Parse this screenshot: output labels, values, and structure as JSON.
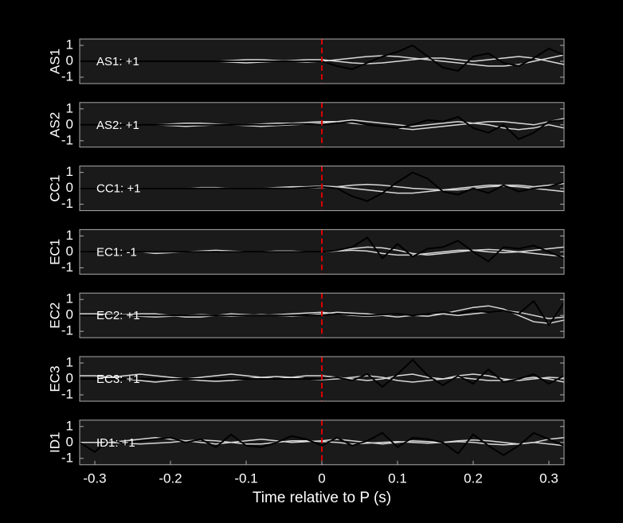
{
  "chart_data": [
    {
      "type": "line",
      "ylabel": "AS1",
      "annotation": "AS1: +1",
      "annotation_color": "#cc0000",
      "vline": 0,
      "vline_color": "#dd0000",
      "x": [
        -0.32,
        -0.3,
        -0.28,
        -0.26,
        -0.24,
        -0.22,
        -0.2,
        -0.18,
        -0.16,
        -0.14,
        -0.12,
        -0.1,
        -0.08,
        -0.06,
        -0.04,
        -0.02,
        0,
        0.02,
        0.04,
        0.06,
        0.08,
        0.1,
        0.12,
        0.14,
        0.16,
        0.18,
        0.2,
        0.22,
        0.24,
        0.26,
        0.28,
        0.3,
        0.32
      ],
      "xlim": [
        -0.32,
        0.32
      ],
      "ylim": [
        -1.4,
        1.4
      ],
      "yticks": [
        -1,
        0,
        1
      ],
      "series": [
        {
          "color": "#d9d9d9",
          "values": [
            0,
            0,
            0,
            0,
            0,
            0,
            0,
            0,
            0,
            0,
            0.05,
            0.1,
            0.1,
            0.05,
            0,
            -0.05,
            0,
            0.1,
            0.2,
            0.3,
            0.35,
            0.3,
            0.2,
            0.1,
            0,
            -0.1,
            -0.2,
            -0.3,
            -0.3,
            -0.2,
            0,
            0.2,
            0.4
          ]
        },
        {
          "color": "#d9d9d9",
          "values": [
            0,
            0,
            0,
            0,
            0,
            0,
            0,
            0,
            0,
            0,
            -0.05,
            -0.1,
            -0.05,
            0,
            0.05,
            0.1,
            0.1,
            0,
            -0.1,
            -0.15,
            -0.1,
            0,
            0.1,
            0.2,
            0.2,
            0.1,
            0,
            0.1,
            0.2,
            0.3,
            0.2,
            0,
            -0.2
          ]
        },
        {
          "color": "#000000",
          "values": [
            0,
            0,
            0,
            0,
            0,
            0,
            0,
            0,
            0,
            0,
            0,
            0,
            0,
            0,
            0,
            0,
            0,
            -0.3,
            -0.5,
            -0.1,
            0.3,
            0.6,
            1.0,
            0.3,
            -0.4,
            -0.6,
            0.3,
            0.5,
            -0.1,
            -0.3,
            0.2,
            0.8,
            0.4
          ]
        }
      ]
    },
    {
      "type": "line",
      "ylabel": "AS2",
      "annotation": "AS2: +1",
      "annotation_color": "#cc0000",
      "vline": 0,
      "vline_color": "#dd0000",
      "x": [
        -0.32,
        -0.3,
        -0.28,
        -0.26,
        -0.24,
        -0.22,
        -0.2,
        -0.18,
        -0.16,
        -0.14,
        -0.12,
        -0.1,
        -0.08,
        -0.06,
        -0.04,
        -0.02,
        0,
        0.02,
        0.04,
        0.06,
        0.08,
        0.1,
        0.12,
        0.14,
        0.16,
        0.18,
        0.2,
        0.22,
        0.24,
        0.26,
        0.28,
        0.3,
        0.32
      ],
      "xlim": [
        -0.32,
        0.32
      ],
      "ylim": [
        -1.4,
        1.4
      ],
      "yticks": [
        -1,
        0,
        1
      ],
      "series": [
        {
          "color": "#d9d9d9",
          "values": [
            0,
            0,
            0,
            0,
            0,
            0,
            0.05,
            0.1,
            0.1,
            0.05,
            0,
            0,
            0.05,
            0.1,
            0.1,
            0.15,
            0.2,
            0.2,
            0.1,
            0,
            -0.1,
            -0.2,
            -0.3,
            -0.2,
            -0.1,
            0,
            0.1,
            0.2,
            0.2,
            0.1,
            0,
            0.2,
            0.4
          ]
        },
        {
          "color": "#d9d9d9",
          "values": [
            0,
            0,
            0,
            0,
            0,
            0,
            -0.05,
            -0.1,
            -0.05,
            0,
            0,
            -0.05,
            -0.1,
            -0.05,
            0,
            0.05,
            0.1,
            0.2,
            0.3,
            0.2,
            0.1,
            0,
            -0.1,
            0,
            0.1,
            0.2,
            0.1,
            0,
            -0.2,
            -0.3,
            -0.2,
            0,
            -0.2
          ]
        },
        {
          "color": "#000000",
          "values": [
            0,
            0,
            0,
            0,
            0,
            0,
            0,
            0,
            0,
            0,
            0,
            0,
            0,
            0,
            0.05,
            0.05,
            0,
            0.1,
            0.2,
            0,
            -0.1,
            -0.2,
            0,
            0.3,
            0.2,
            0.5,
            -0.2,
            -0.5,
            0,
            -0.9,
            -0.5,
            0.2,
            0.3
          ]
        }
      ]
    },
    {
      "type": "line",
      "ylabel": "CC1",
      "annotation": "CC1: +1",
      "annotation_color": "#cc0000",
      "vline": 0,
      "vline_color": "#dd0000",
      "x": [
        -0.32,
        -0.3,
        -0.28,
        -0.26,
        -0.24,
        -0.22,
        -0.2,
        -0.18,
        -0.16,
        -0.14,
        -0.12,
        -0.1,
        -0.08,
        -0.06,
        -0.04,
        -0.02,
        0,
        0.02,
        0.04,
        0.06,
        0.08,
        0.1,
        0.12,
        0.14,
        0.16,
        0.18,
        0.2,
        0.22,
        0.24,
        0.26,
        0.28,
        0.3,
        0.32
      ],
      "xlim": [
        -0.32,
        0.32
      ],
      "ylim": [
        -1.4,
        1.4
      ],
      "yticks": [
        -1,
        0,
        1
      ],
      "series": [
        {
          "color": "#d9d9d9",
          "values": [
            0,
            0,
            0,
            0,
            0,
            0,
            0,
            0,
            0.05,
            0.05,
            0,
            0,
            0,
            0.05,
            0.1,
            0.1,
            0.15,
            0.1,
            0,
            -0.1,
            -0.2,
            -0.3,
            -0.3,
            -0.2,
            -0.1,
            0,
            0.1,
            0.2,
            0.2,
            0.2,
            0.1,
            0.2,
            0.3
          ]
        },
        {
          "color": "#d9d9d9",
          "values": [
            0,
            0,
            0,
            0,
            0,
            0,
            0,
            0,
            0,
            0,
            0,
            0,
            0,
            0,
            0.05,
            0.05,
            0.05,
            0.1,
            0.2,
            0.25,
            0.2,
            0.1,
            0,
            -0.05,
            -0.1,
            -0.1,
            0,
            0.1,
            0.15,
            0.1,
            0,
            -0.1,
            -0.2
          ]
        },
        {
          "color": "#000000",
          "values": [
            0,
            0,
            0,
            0,
            0,
            0,
            0,
            0,
            0,
            0,
            0,
            0,
            0,
            0,
            0,
            0.05,
            0.1,
            0,
            -0.5,
            -0.8,
            -0.3,
            0.4,
            1.0,
            0.6,
            -0.2,
            -0.4,
            0,
            -0.3,
            0.2,
            -0.2,
            0,
            0.1,
            0.4
          ]
        }
      ]
    },
    {
      "type": "line",
      "ylabel": "EC1",
      "annotation": "EC1: -1",
      "annotation_color": "#0000aa",
      "vline": 0,
      "vline_color": "#dd0000",
      "x": [
        -0.32,
        -0.3,
        -0.28,
        -0.26,
        -0.24,
        -0.22,
        -0.2,
        -0.18,
        -0.16,
        -0.14,
        -0.12,
        -0.1,
        -0.08,
        -0.06,
        -0.04,
        -0.02,
        0,
        0.02,
        0.04,
        0.06,
        0.08,
        0.1,
        0.12,
        0.14,
        0.16,
        0.18,
        0.2,
        0.22,
        0.24,
        0.26,
        0.28,
        0.3,
        0.32
      ],
      "xlim": [
        -0.32,
        0.32
      ],
      "ylim": [
        -1.4,
        1.4
      ],
      "yticks": [
        -1,
        0,
        1
      ],
      "series": [
        {
          "color": "#d9d9d9",
          "values": [
            0,
            0,
            0,
            0,
            0,
            -0.1,
            -0.05,
            0,
            0.05,
            0.1,
            0.05,
            0,
            0,
            0.05,
            0.05,
            0,
            0,
            0.1,
            0.2,
            0.3,
            0.25,
            0.1,
            -0.1,
            -0.2,
            -0.1,
            0,
            0.1,
            0.15,
            0.1,
            0,
            -0.1,
            -0.2,
            -0.3
          ]
        },
        {
          "color": "#d9d9d9",
          "values": [
            0,
            0,
            0,
            0,
            0,
            0,
            0,
            0,
            0,
            0,
            0,
            0,
            0,
            0,
            0,
            0,
            0,
            0.05,
            0.1,
            0.05,
            -0.1,
            -0.2,
            -0.2,
            -0.1,
            0,
            0.1,
            0.1,
            0,
            -0.05,
            0,
            0.1,
            0.2,
            0.3
          ]
        },
        {
          "color": "#000000",
          "values": [
            0,
            0,
            0,
            0,
            0,
            0,
            0,
            0,
            0,
            0,
            0,
            0,
            0,
            0,
            0,
            0,
            0,
            0.1,
            0.3,
            0.9,
            -0.4,
            0.5,
            -0.3,
            0.2,
            0.3,
            0.7,
            0,
            -0.6,
            0.3,
            0.2,
            0.4,
            0,
            -0.4
          ]
        }
      ]
    },
    {
      "type": "line",
      "ylabel": "EC2",
      "annotation": "EC2: +1",
      "annotation_color": "#cc0000",
      "vline": 0,
      "vline_color": "#dd0000",
      "x": [
        -0.32,
        -0.3,
        -0.28,
        -0.26,
        -0.24,
        -0.22,
        -0.2,
        -0.18,
        -0.16,
        -0.14,
        -0.12,
        -0.1,
        -0.08,
        -0.06,
        -0.04,
        -0.02,
        0,
        0.02,
        0.04,
        0.06,
        0.08,
        0.1,
        0.12,
        0.14,
        0.16,
        0.18,
        0.2,
        0.22,
        0.24,
        0.26,
        0.28,
        0.3,
        0.32
      ],
      "xlim": [
        -0.32,
        0.32
      ],
      "ylim": [
        -1.4,
        1.4
      ],
      "yticks": [
        -1,
        0,
        1
      ],
      "series": [
        {
          "color": "#d9d9d9",
          "values": [
            0,
            0,
            0,
            0.05,
            0.1,
            0.1,
            0,
            -0.1,
            -0.1,
            0,
            0.1,
            0.05,
            0,
            0.05,
            0.1,
            0.15,
            0.2,
            0.1,
            0,
            -0.05,
            0,
            0.1,
            0,
            -0.05,
            0.1,
            0.3,
            0.5,
            0.6,
            0.4,
            0,
            -0.4,
            -0.5,
            -0.3
          ]
        },
        {
          "color": "#d9d9d9",
          "values": [
            0.1,
            0.1,
            0.05,
            0,
            -0.05,
            -0.1,
            -0.05,
            0,
            0.05,
            0,
            -0.05,
            0,
            0.05,
            0,
            -0.05,
            0,
            0.1,
            0.2,
            0.15,
            0.1,
            0,
            -0.1,
            0,
            0.1,
            0.1,
            0,
            0.1,
            0.2,
            0.3,
            0.2,
            0,
            -0.2,
            -0.1
          ]
        },
        {
          "color": "#000000",
          "values": [
            0,
            0,
            0,
            0,
            0,
            0,
            0,
            0,
            0,
            0,
            0,
            0,
            0,
            0,
            0,
            0,
            0,
            0.1,
            0.05,
            0,
            0.05,
            0.1,
            0,
            0.1,
            0.2,
            0.1,
            0.3,
            0.2,
            0.3,
            0.1,
            0.9,
            -0.6,
            0.8
          ]
        }
      ]
    },
    {
      "type": "line",
      "ylabel": "EC3",
      "annotation": "EC3: +1",
      "annotation_color": "#cc0000",
      "vline": 0,
      "vline_color": "#dd0000",
      "x": [
        -0.32,
        -0.3,
        -0.28,
        -0.26,
        -0.24,
        -0.22,
        -0.2,
        -0.18,
        -0.16,
        -0.14,
        -0.12,
        -0.1,
        -0.08,
        -0.06,
        -0.04,
        -0.02,
        0,
        0.02,
        0.04,
        0.06,
        0.08,
        0.1,
        0.12,
        0.14,
        0.16,
        0.18,
        0.2,
        0.22,
        0.24,
        0.26,
        0.28,
        0.3,
        0.32
      ],
      "xlim": [
        -0.32,
        0.32
      ],
      "ylim": [
        -1.4,
        1.4
      ],
      "yticks": [
        -1,
        0,
        1
      ],
      "series": [
        {
          "color": "#d9d9d9",
          "values": [
            0,
            0,
            0.1,
            0.2,
            0.3,
            0.2,
            0.1,
            0,
            0.1,
            0.2,
            0.3,
            0.2,
            0.1,
            0,
            0.1,
            0.2,
            0.2,
            0.1,
            0,
            -0.1,
            0,
            0.2,
            0.3,
            0.1,
            0,
            0.2,
            0.3,
            0.2,
            0,
            -0.1,
            0,
            0.1,
            0.05
          ]
        },
        {
          "color": "#d9d9d9",
          "values": [
            0.2,
            0.2,
            0.1,
            0,
            -0.1,
            -0.2,
            -0.1,
            0,
            -0.1,
            -0.15,
            -0.1,
            0,
            0.1,
            0.15,
            0.1,
            0,
            -0.05,
            0,
            0.1,
            0.2,
            0.1,
            -0.1,
            -0.2,
            -0.1,
            0,
            0.1,
            0,
            -0.1,
            -0.1,
            0,
            0.1,
            0,
            -0.2
          ]
        },
        {
          "color": "#000000",
          "values": [
            0,
            0,
            0,
            0,
            0,
            0,
            0,
            0,
            0,
            0,
            0,
            0,
            0,
            0,
            0,
            0,
            0,
            0.1,
            -0.1,
            0.3,
            -0.5,
            0.3,
            1.2,
            0.2,
            -0.4,
            0.2,
            -0.3,
            0.6,
            -0.2,
            0,
            0.3,
            -0.3,
            0.2
          ]
        }
      ]
    },
    {
      "type": "line",
      "ylabel": "ID1",
      "annotation": "ID1: +1",
      "annotation_color": "#cc0000",
      "vline": 0,
      "vline_color": "#dd0000",
      "x": [
        -0.32,
        -0.3,
        -0.28,
        -0.26,
        -0.24,
        -0.22,
        -0.2,
        -0.18,
        -0.16,
        -0.14,
        -0.12,
        -0.1,
        -0.08,
        -0.06,
        -0.04,
        -0.02,
        0,
        0.02,
        0.04,
        0.06,
        0.08,
        0.1,
        0.12,
        0.14,
        0.16,
        0.18,
        0.2,
        0.22,
        0.24,
        0.26,
        0.28,
        0.3,
        0.32
      ],
      "xlim": [
        -0.32,
        0.32
      ],
      "ylim": [
        -1.4,
        1.4
      ],
      "yticks": [
        -1,
        0,
        1
      ],
      "xticks": [
        -0.3,
        -0.2,
        -0.1,
        0,
        0.1,
        0.2,
        0.3
      ],
      "xlabel": "Time relative to P (s)",
      "series": [
        {
          "color": "#d9d9d9",
          "values": [
            0,
            0,
            0,
            0.1,
            0.2,
            0.3,
            0.2,
            0.1,
            0,
            -0.1,
            0,
            0.1,
            0.2,
            0.1,
            0,
            0.05,
            0.1,
            0.2,
            0.1,
            0,
            -0.1,
            0,
            0.1,
            0.05,
            0,
            0.1,
            0.15,
            0.1,
            0,
            -0.1,
            0,
            0.2,
            0.3
          ]
        },
        {
          "color": "#d9d9d9",
          "values": [
            0,
            0,
            0,
            -0.05,
            -0.1,
            -0.05,
            0,
            0.1,
            0.15,
            0.1,
            0,
            -0.1,
            -0.1,
            0,
            0.1,
            0.1,
            0.05,
            0,
            -0.1,
            -0.05,
            0,
            0.05,
            0,
            -0.05,
            0,
            0.05,
            0,
            -0.1,
            -0.15,
            -0.1,
            0,
            -0.1,
            -0.2
          ]
        },
        {
          "color": "#000000",
          "values": [
            0,
            -0.6,
            0.2,
            -0.1,
            0.1,
            0.2,
            0.3,
            0,
            0.2,
            -0.3,
            0.5,
            -0.2,
            -0.3,
            0,
            0.4,
            0.2,
            -0.2,
            0.3,
            -0.2,
            0.1,
            0.6,
            -0.3,
            0.3,
            0.2,
            0,
            -0.7,
            0.5,
            -0.2,
            -0.8,
            -0.2,
            0.6,
            0.2,
            -0.2
          ]
        }
      ]
    }
  ]
}
